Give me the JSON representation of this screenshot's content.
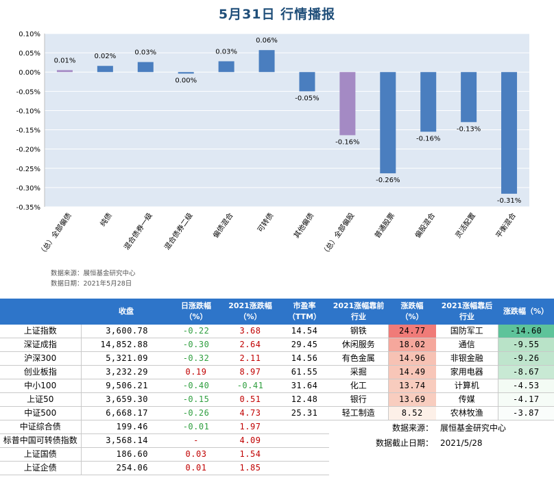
{
  "title": "5月31日  行情播报",
  "chart_data": {
    "type": "bar",
    "categories": [
      "（总）全部偏债",
      "纯债",
      "混合债券一级",
      "混合债券二级",
      "偏债混合",
      "可转债",
      "其他偏债",
      "（总）全部偏股",
      "普通股票",
      "偏股混合",
      "灵活配置",
      "平衡混合"
    ],
    "values": [
      0.01,
      0.02,
      0.03,
      0.0,
      0.03,
      0.06,
      -0.05,
      -0.16,
      -0.26,
      -0.16,
      -0.13,
      -0.31
    ],
    "bar_heights": [
      0.005,
      0.016,
      0.026,
      -0.004,
      0.028,
      0.057,
      -0.05,
      -0.164,
      -0.263,
      -0.155,
      -0.13,
      -0.316
    ],
    "data_labels": [
      "0.01%",
      "0.02%",
      "0.03%",
      "0.00%",
      "0.03%",
      "0.06%",
      "-0.05%",
      "-0.16%",
      "-0.26%",
      "-0.16%",
      "-0.13%",
      "-0.31%"
    ],
    "highlight_categories": [
      "（总）全部偏债",
      "（总）全部偏股"
    ],
    "ylim": [
      -0.35,
      0.1
    ],
    "yticks": [
      0.1,
      0.05,
      0.0,
      -0.05,
      -0.1,
      -0.15,
      -0.2,
      -0.25,
      -0.3,
      -0.35
    ],
    "ytick_labels": [
      "0.10%",
      "0.05%",
      "0.00%",
      "-0.05%",
      "-0.10%",
      "-0.15%",
      "-0.20%",
      "-0.25%",
      "-0.30%",
      "-0.35%"
    ],
    "colors": {
      "bar": "#4a7ebf",
      "highlight": "#a48ac4",
      "plot_bg": "#dfe8f3",
      "grid": "#ffffff"
    }
  },
  "source_chart": "数据来源：展恒基金研究中心",
  "date_chart": "数据日期：2021年5月28日",
  "left_table": {
    "headers": [
      "",
      "收盘",
      "日涨跌幅\n（%）",
      "2021涨跌幅\n（%）",
      "市盈率\n（TTM）"
    ],
    "rows": [
      {
        "name": "上证指数",
        "close": "3,600.78",
        "day": "-0.22",
        "ytd": "3.68",
        "pe": "14.54",
        "day_dir": "down",
        "ytd_dir": "up"
      },
      {
        "name": "深证成指",
        "close": "14,852.88",
        "day": "-0.30",
        "ytd": "2.64",
        "pe": "29.45",
        "day_dir": "down",
        "ytd_dir": "up"
      },
      {
        "name": "沪深300",
        "close": "5,321.09",
        "day": "-0.32",
        "ytd": "2.11",
        "pe": "14.56",
        "day_dir": "down",
        "ytd_dir": "up"
      },
      {
        "name": "创业板指",
        "close": "3,232.29",
        "day": "0.19",
        "ytd": "8.97",
        "pe": "61.55",
        "day_dir": "up",
        "ytd_dir": "up"
      },
      {
        "name": "中小100",
        "close": "9,506.21",
        "day": "-0.40",
        "ytd": "-0.41",
        "pe": "31.64",
        "day_dir": "down",
        "ytd_dir": "down"
      },
      {
        "name": "上证50",
        "close": "3,659.30",
        "day": "-0.15",
        "ytd": "0.51",
        "pe": "12.48",
        "day_dir": "down",
        "ytd_dir": "up"
      },
      {
        "name": "中证500",
        "close": "6,668.17",
        "day": "-0.26",
        "ytd": "4.73",
        "pe": "25.31",
        "day_dir": "down",
        "ytd_dir": "up"
      },
      {
        "name": "中证综合债",
        "close": "199.46",
        "day": "-0.01",
        "ytd": "1.97",
        "pe": "",
        "day_dir": "down",
        "ytd_dir": "up"
      },
      {
        "name": "标普中国可转债指数",
        "close": "3,568.14",
        "day": "-",
        "ytd": "4.09",
        "pe": "",
        "day_dir": "up",
        "ytd_dir": "up"
      },
      {
        "name": "上证国债",
        "close": "186.60",
        "day": "0.03",
        "ytd": "1.54",
        "pe": "",
        "day_dir": "up",
        "ytd_dir": "up"
      },
      {
        "name": "上证企债",
        "close": "254.06",
        "day": "0.01",
        "ytd": "1.85",
        "pe": "",
        "day_dir": "up",
        "ytd_dir": "up"
      }
    ]
  },
  "right_table": {
    "headers": [
      "2021涨幅靠前\n行业",
      "涨跌幅\n（%）",
      "2021涨幅靠后\n行业",
      "涨跌幅（%）"
    ],
    "rows": [
      {
        "top": "钢铁",
        "top_v": "24.77",
        "top_bg": "#f07b78",
        "bot": "国防军工",
        "bot_v": "-14.60",
        "bot_bg": "#5ec39a"
      },
      {
        "top": "休闲服务",
        "top_v": "18.02",
        "top_bg": "#f5a79c",
        "bot": "通信",
        "bot_v": "-9.55",
        "bot_bg": "#b9e3c8"
      },
      {
        "top": "有色金属",
        "top_v": "14.96",
        "top_bg": "#f7c2b4",
        "bot": "非银金融",
        "bot_v": "-9.26",
        "bot_bg": "#bfe5cd"
      },
      {
        "top": "采掘",
        "top_v": "14.49",
        "top_bg": "#f8c6b8",
        "bot": "家用电器",
        "bot_v": "-8.67",
        "bot_bg": "#c8e9d4"
      },
      {
        "top": "化工",
        "top_v": "13.74",
        "top_bg": "#f8ccbe",
        "bot": "计算机",
        "bot_v": "-4.53",
        "bot_bg": "#f3fbf4"
      },
      {
        "top": "银行",
        "top_v": "13.69",
        "top_bg": "#f8cdbf",
        "bot": "传媒",
        "bot_v": "-4.17",
        "bot_bg": "#f6fcf7"
      },
      {
        "top": "轻工制造",
        "top_v": "8.52",
        "top_bg": "#fdf0e8",
        "bot": "农林牧渔",
        "bot_v": "-3.87",
        "bot_bg": "#fafdfb"
      }
    ],
    "source": "数据来源：",
    "source_val": "展恒基金研究中心",
    "date": "数据截止日期：",
    "date_val": "2021/5/28"
  }
}
